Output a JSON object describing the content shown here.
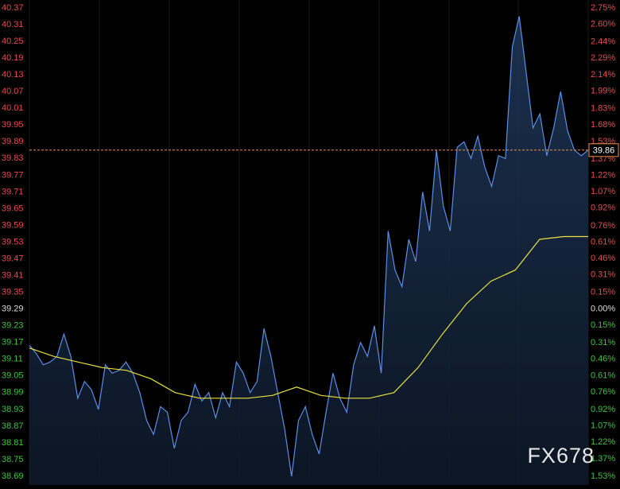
{
  "chart_data": {
    "type": "line",
    "watermark": "FX678",
    "base": 39.29,
    "up_color": "#e84b4b",
    "down_color": "#3dc43d",
    "flat_color": "#dddddd",
    "ylim": [
      38.69,
      40.37
    ],
    "yticks": [
      40.37,
      40.31,
      40.25,
      40.19,
      40.13,
      40.07,
      40.01,
      39.95,
      39.89,
      39.83,
      39.77,
      39.71,
      39.65,
      39.59,
      39.53,
      39.47,
      39.41,
      39.35,
      39.29,
      39.23,
      39.17,
      39.11,
      39.05,
      38.99,
      38.93,
      38.87,
      38.81,
      38.75,
      38.69
    ],
    "y2lim": [
      -1.53,
      2.75
    ],
    "y2ticks": [
      {
        "value": 2.75,
        "label": "2.75%"
      },
      {
        "value": 2.6,
        "label": "2.60%"
      },
      {
        "value": 2.44,
        "label": "2.44%"
      },
      {
        "value": 2.29,
        "label": "2.29%"
      },
      {
        "value": 2.14,
        "label": "2.14%"
      },
      {
        "value": 1.99,
        "label": "1.99%"
      },
      {
        "value": 1.83,
        "label": "1.83%"
      },
      {
        "value": 1.68,
        "label": "1.68%"
      },
      {
        "value": 1.53,
        "label": "1.53%"
      },
      {
        "value": 1.37,
        "label": "1.37%"
      },
      {
        "value": 1.22,
        "label": "1.22%"
      },
      {
        "value": 1.07,
        "label": "1.07%"
      },
      {
        "value": 0.92,
        "label": "0.92%"
      },
      {
        "value": 0.76,
        "label": "0.76%"
      },
      {
        "value": 0.61,
        "label": "0.61%"
      },
      {
        "value": 0.46,
        "label": "0.46%"
      },
      {
        "value": 0.31,
        "label": "0.31%"
      },
      {
        "value": 0.15,
        "label": "0.15%"
      },
      {
        "value": 0,
        "label": "0.00%"
      },
      {
        "value": -0.15,
        "label": "0.15%"
      },
      {
        "value": -0.31,
        "label": "0.31%"
      },
      {
        "value": -0.46,
        "label": "0.46%"
      },
      {
        "value": -0.61,
        "label": "0.61%"
      },
      {
        "value": -0.76,
        "label": "0.76%"
      },
      {
        "value": -0.92,
        "label": "0.92%"
      },
      {
        "value": -1.07,
        "label": "1.07%"
      },
      {
        "value": -1.22,
        "label": "1.22%"
      },
      {
        "value": -1.37,
        "label": "1.37%"
      },
      {
        "value": -1.53,
        "label": "1.53%"
      }
    ],
    "ref_line": {
      "value": 39.86,
      "color": "#e8904a"
    },
    "series": [
      {
        "color": "#5b8fe8",
        "area": true,
        "values": [
          39.16,
          39.13,
          39.09,
          39.1,
          39.12,
          39.2,
          39.12,
          38.97,
          39.03,
          39.0,
          38.93,
          39.09,
          39.06,
          39.07,
          39.1,
          39.06,
          38.99,
          38.89,
          38.84,
          38.94,
          38.92,
          38.79,
          38.89,
          38.92,
          39.02,
          38.96,
          38.99,
          38.9,
          38.99,
          38.94,
          39.1,
          39.06,
          38.99,
          39.03,
          39.22,
          39.12,
          38.99,
          38.86,
          38.69,
          38.89,
          38.94,
          38.84,
          38.77,
          38.92,
          39.06,
          38.97,
          38.92,
          39.09,
          39.17,
          39.12,
          39.23,
          39.06,
          39.57,
          39.43,
          39.37,
          39.54,
          39.46,
          39.71,
          39.57,
          39.86,
          39.66,
          39.57,
          39.87,
          39.89,
          39.83,
          39.91,
          39.8,
          39.73,
          39.84,
          39.83,
          40.23,
          40.34,
          40.14,
          39.94,
          39.99,
          39.84,
          39.94,
          40.07,
          39.93,
          39.86,
          39.84,
          39.86
        ]
      },
      {
        "color": "#e8e040",
        "area": false,
        "values": [
          39.15,
          39.12,
          39.1,
          39.08,
          39.07,
          39.04,
          38.99,
          38.97,
          38.97,
          38.97,
          38.98,
          39.01,
          38.98,
          38.97,
          38.97,
          38.99,
          39.08,
          39.2,
          39.31,
          39.39,
          39.43,
          39.54,
          39.55,
          39.55
        ]
      }
    ]
  }
}
